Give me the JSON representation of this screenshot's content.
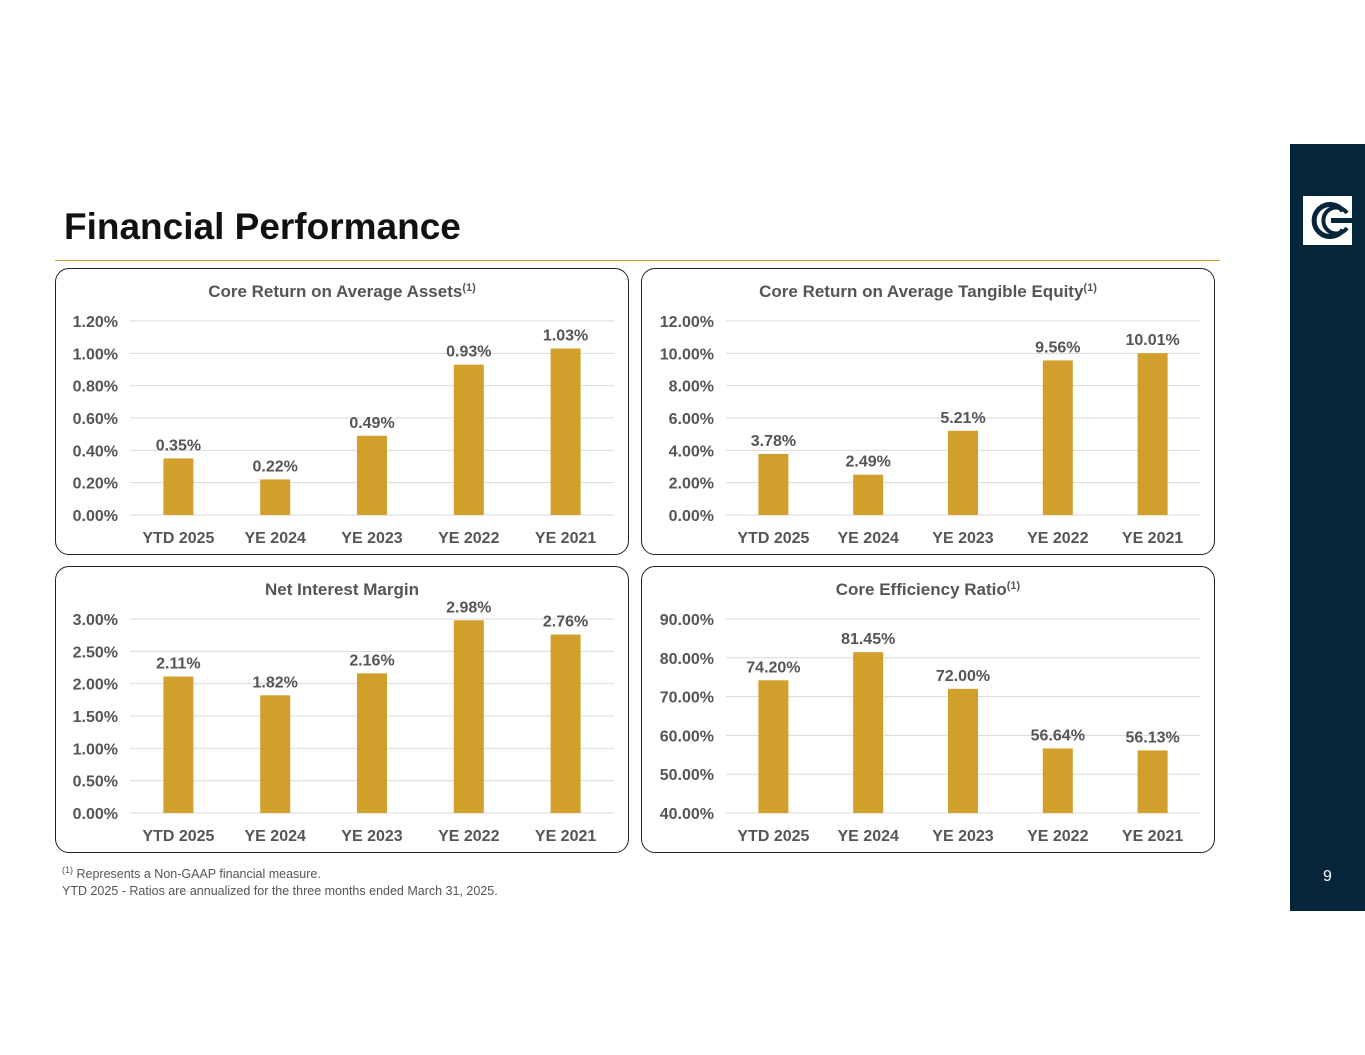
{
  "header": {
    "title": "Financial Performance"
  },
  "page_number": "9",
  "footnotes": {
    "marker": "(1)",
    "line1": "Represents a Non-GAAP financial measure.",
    "line2": "YTD 2025 - Ratios are annualized for the three months ended March 31, 2025."
  },
  "colors": {
    "bar": "#d09f2c",
    "sidebar": "#04253a",
    "rule": "#d4a02c"
  },
  "chart_data": [
    {
      "type": "bar",
      "title": "Core Return on Average Assets",
      "title_sup": "(1)",
      "categories": [
        "YTD 2025",
        "YE 2024",
        "YE 2023",
        "YE 2022",
        "YE 2021"
      ],
      "values": [
        0.35,
        0.22,
        0.49,
        0.93,
        1.03
      ],
      "labels": [
        "0.35%",
        "0.22%",
        "0.49%",
        "0.93%",
        "1.03%"
      ],
      "ylim": [
        0,
        1.2
      ],
      "yticks": [
        0,
        0.2,
        0.4,
        0.6,
        0.8,
        1.0,
        1.2
      ],
      "ytick_labels": [
        "0.00%",
        "0.20%",
        "0.40%",
        "0.60%",
        "0.80%",
        "1.00%",
        "1.20%"
      ],
      "grid": true
    },
    {
      "type": "bar",
      "title": "Core Return on Average Tangible Equity",
      "title_sup": "(1)",
      "categories": [
        "YTD 2025",
        "YE 2024",
        "YE 2023",
        "YE 2022",
        "YE 2021"
      ],
      "values": [
        3.78,
        2.49,
        5.21,
        9.56,
        10.01
      ],
      "labels": [
        "3.78%",
        "2.49%",
        "5.21%",
        "9.56%",
        "10.01%"
      ],
      "ylim": [
        0,
        12
      ],
      "yticks": [
        0,
        2,
        4,
        6,
        8,
        10,
        12
      ],
      "ytick_labels": [
        "0.00%",
        "2.00%",
        "4.00%",
        "6.00%",
        "8.00%",
        "10.00%",
        "12.00%"
      ],
      "grid": true
    },
    {
      "type": "bar",
      "title": "Net Interest Margin",
      "title_sup": "",
      "categories": [
        "YTD 2025",
        "YE 2024",
        "YE 2023",
        "YE 2022",
        "YE 2021"
      ],
      "values": [
        2.11,
        1.82,
        2.16,
        2.98,
        2.76
      ],
      "labels": [
        "2.11%",
        "1.82%",
        "2.16%",
        "2.98%",
        "2.76%"
      ],
      "ylim": [
        0,
        3
      ],
      "yticks": [
        0,
        0.5,
        1,
        1.5,
        2,
        2.5,
        3
      ],
      "ytick_labels": [
        "0.00%",
        "0.50%",
        "1.00%",
        "1.50%",
        "2.00%",
        "2.50%",
        "3.00%"
      ],
      "grid": true
    },
    {
      "type": "bar",
      "title": "Core Efficiency Ratio",
      "title_sup": "(1)",
      "categories": [
        "YTD 2025",
        "YE 2024",
        "YE 2023",
        "YE 2022",
        "YE 2021"
      ],
      "values": [
        74.2,
        81.45,
        72.0,
        56.64,
        56.13
      ],
      "labels": [
        "74.20%",
        "81.45%",
        "72.00%",
        "56.64%",
        "56.13%"
      ],
      "ylim": [
        40,
        90
      ],
      "yticks": [
        40,
        50,
        60,
        70,
        80,
        90
      ],
      "ytick_labels": [
        "40.00%",
        "50.00%",
        "60.00%",
        "70.00%",
        "80.00%",
        "90.00%"
      ],
      "grid": true
    }
  ]
}
